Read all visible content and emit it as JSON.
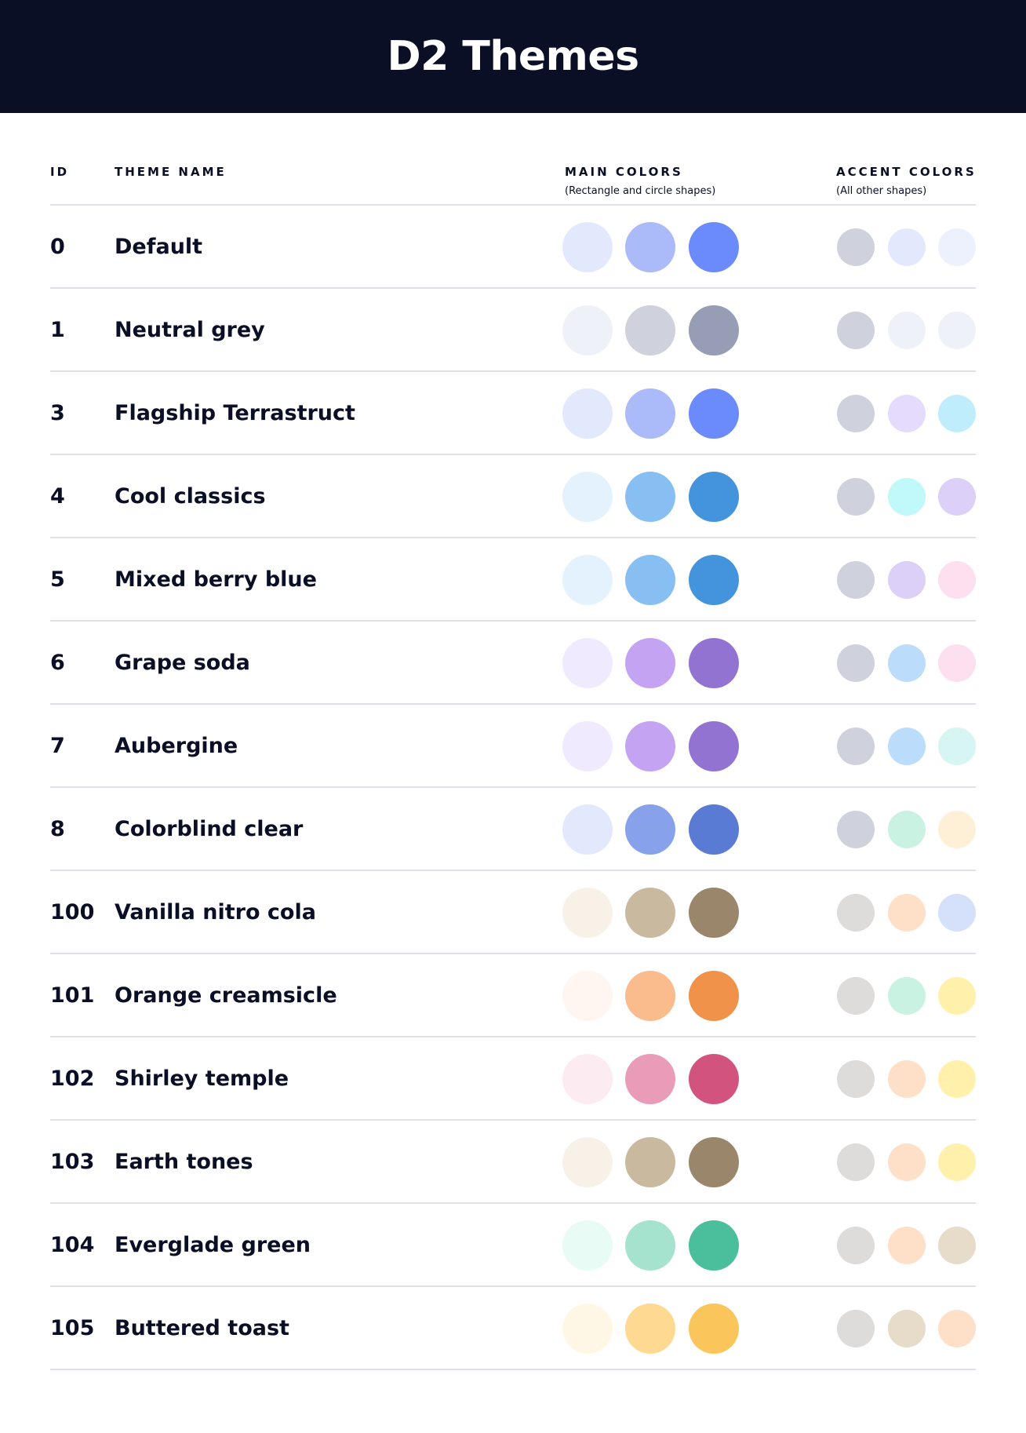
{
  "title": "D2 Themes",
  "columns": {
    "id": "ID",
    "name": "THEME NAME",
    "main": "MAIN COLORS",
    "main_sub": "(Rectangle and circle shapes)",
    "accent": "ACCENT COLORS",
    "accent_sub": "(All other shapes)"
  },
  "themes": [
    {
      "id": "0",
      "name": "Default",
      "main": [
        "#e3e9fd",
        "#abbaf8",
        "#6b8afb"
      ],
      "accent": [
        "#cfd2dd",
        "#e3e9fd",
        "#edf0fd"
      ]
    },
    {
      "id": "1",
      "name": "Neutral grey",
      "main": [
        "#eef1f8",
        "#cfd2dd",
        "#969db4"
      ],
      "accent": [
        "#cfd2dd",
        "#eef1f8",
        "#eef1f8"
      ]
    },
    {
      "id": "3",
      "name": "Flagship Terrastruct",
      "main": [
        "#e3e9fd",
        "#abbaf8",
        "#6b8afb"
      ],
      "accent": [
        "#cfd2dd",
        "#e5dbfd",
        "#c0edfb"
      ]
    },
    {
      "id": "4",
      "name": "Cool classics",
      "main": [
        "#e3f2fd",
        "#87bff3",
        "#4393dd"
      ],
      "accent": [
        "#cfd2dd",
        "#c1f8f9",
        "#dccff8"
      ]
    },
    {
      "id": "5",
      "name": "Mixed berry blue",
      "main": [
        "#e3f2fd",
        "#87bff3",
        "#4393dd"
      ],
      "accent": [
        "#cfd2dd",
        "#dccff8",
        "#fde0f0"
      ]
    },
    {
      "id": "6",
      "name": "Grape soda",
      "main": [
        "#efeafe",
        "#c4a3f3",
        "#9373d1"
      ],
      "accent": [
        "#cfd2dd",
        "#bbdcfb",
        "#fde0f0"
      ]
    },
    {
      "id": "7",
      "name": "Aubergine",
      "main": [
        "#efeafe",
        "#c4a3f3",
        "#9373d1"
      ],
      "accent": [
        "#cfd2dd",
        "#bbdcfb",
        "#d7f5f3"
      ]
    },
    {
      "id": "8",
      "name": "Colorblind clear",
      "main": [
        "#e3e9fd",
        "#87a2ea",
        "#5a7bd4"
      ],
      "accent": [
        "#cfd2dd",
        "#c9f2e3",
        "#fdf0d7"
      ]
    },
    {
      "id": "100",
      "name": "Vanilla nitro cola",
      "main": [
        "#f8f1e7",
        "#c9b99f",
        "#9a876b"
      ],
      "accent": [
        "#dedcda",
        "#fee0c9",
        "#d5e0fb"
      ]
    },
    {
      "id": "101",
      "name": "Orange creamsicle",
      "main": [
        "#fff6f2",
        "#fabb8d",
        "#f0924a"
      ],
      "accent": [
        "#dedcda",
        "#c9f2e3",
        "#fff1ab"
      ]
    },
    {
      "id": "102",
      "name": "Shirley temple",
      "main": [
        "#fcecf2",
        "#ea9bb7",
        "#d3537f"
      ],
      "accent": [
        "#dedcda",
        "#fee0c9",
        "#fff1ab"
      ]
    },
    {
      "id": "103",
      "name": "Earth tones",
      "main": [
        "#f8f1e7",
        "#c9b99f",
        "#9a876b"
      ],
      "accent": [
        "#dedcda",
        "#fee0c9",
        "#fff1ab"
      ]
    },
    {
      "id": "104",
      "name": "Everglade green",
      "main": [
        "#e8fbf5",
        "#a5e3ce",
        "#4bbe9b"
      ],
      "accent": [
        "#dedcda",
        "#fee0c9",
        "#e7dbc9"
      ]
    },
    {
      "id": "105",
      "name": "Buttered toast",
      "main": [
        "#fff7e6",
        "#fed991",
        "#fac65b"
      ],
      "accent": [
        "#dedcda",
        "#e7dbc9",
        "#fee0c9"
      ]
    }
  ]
}
